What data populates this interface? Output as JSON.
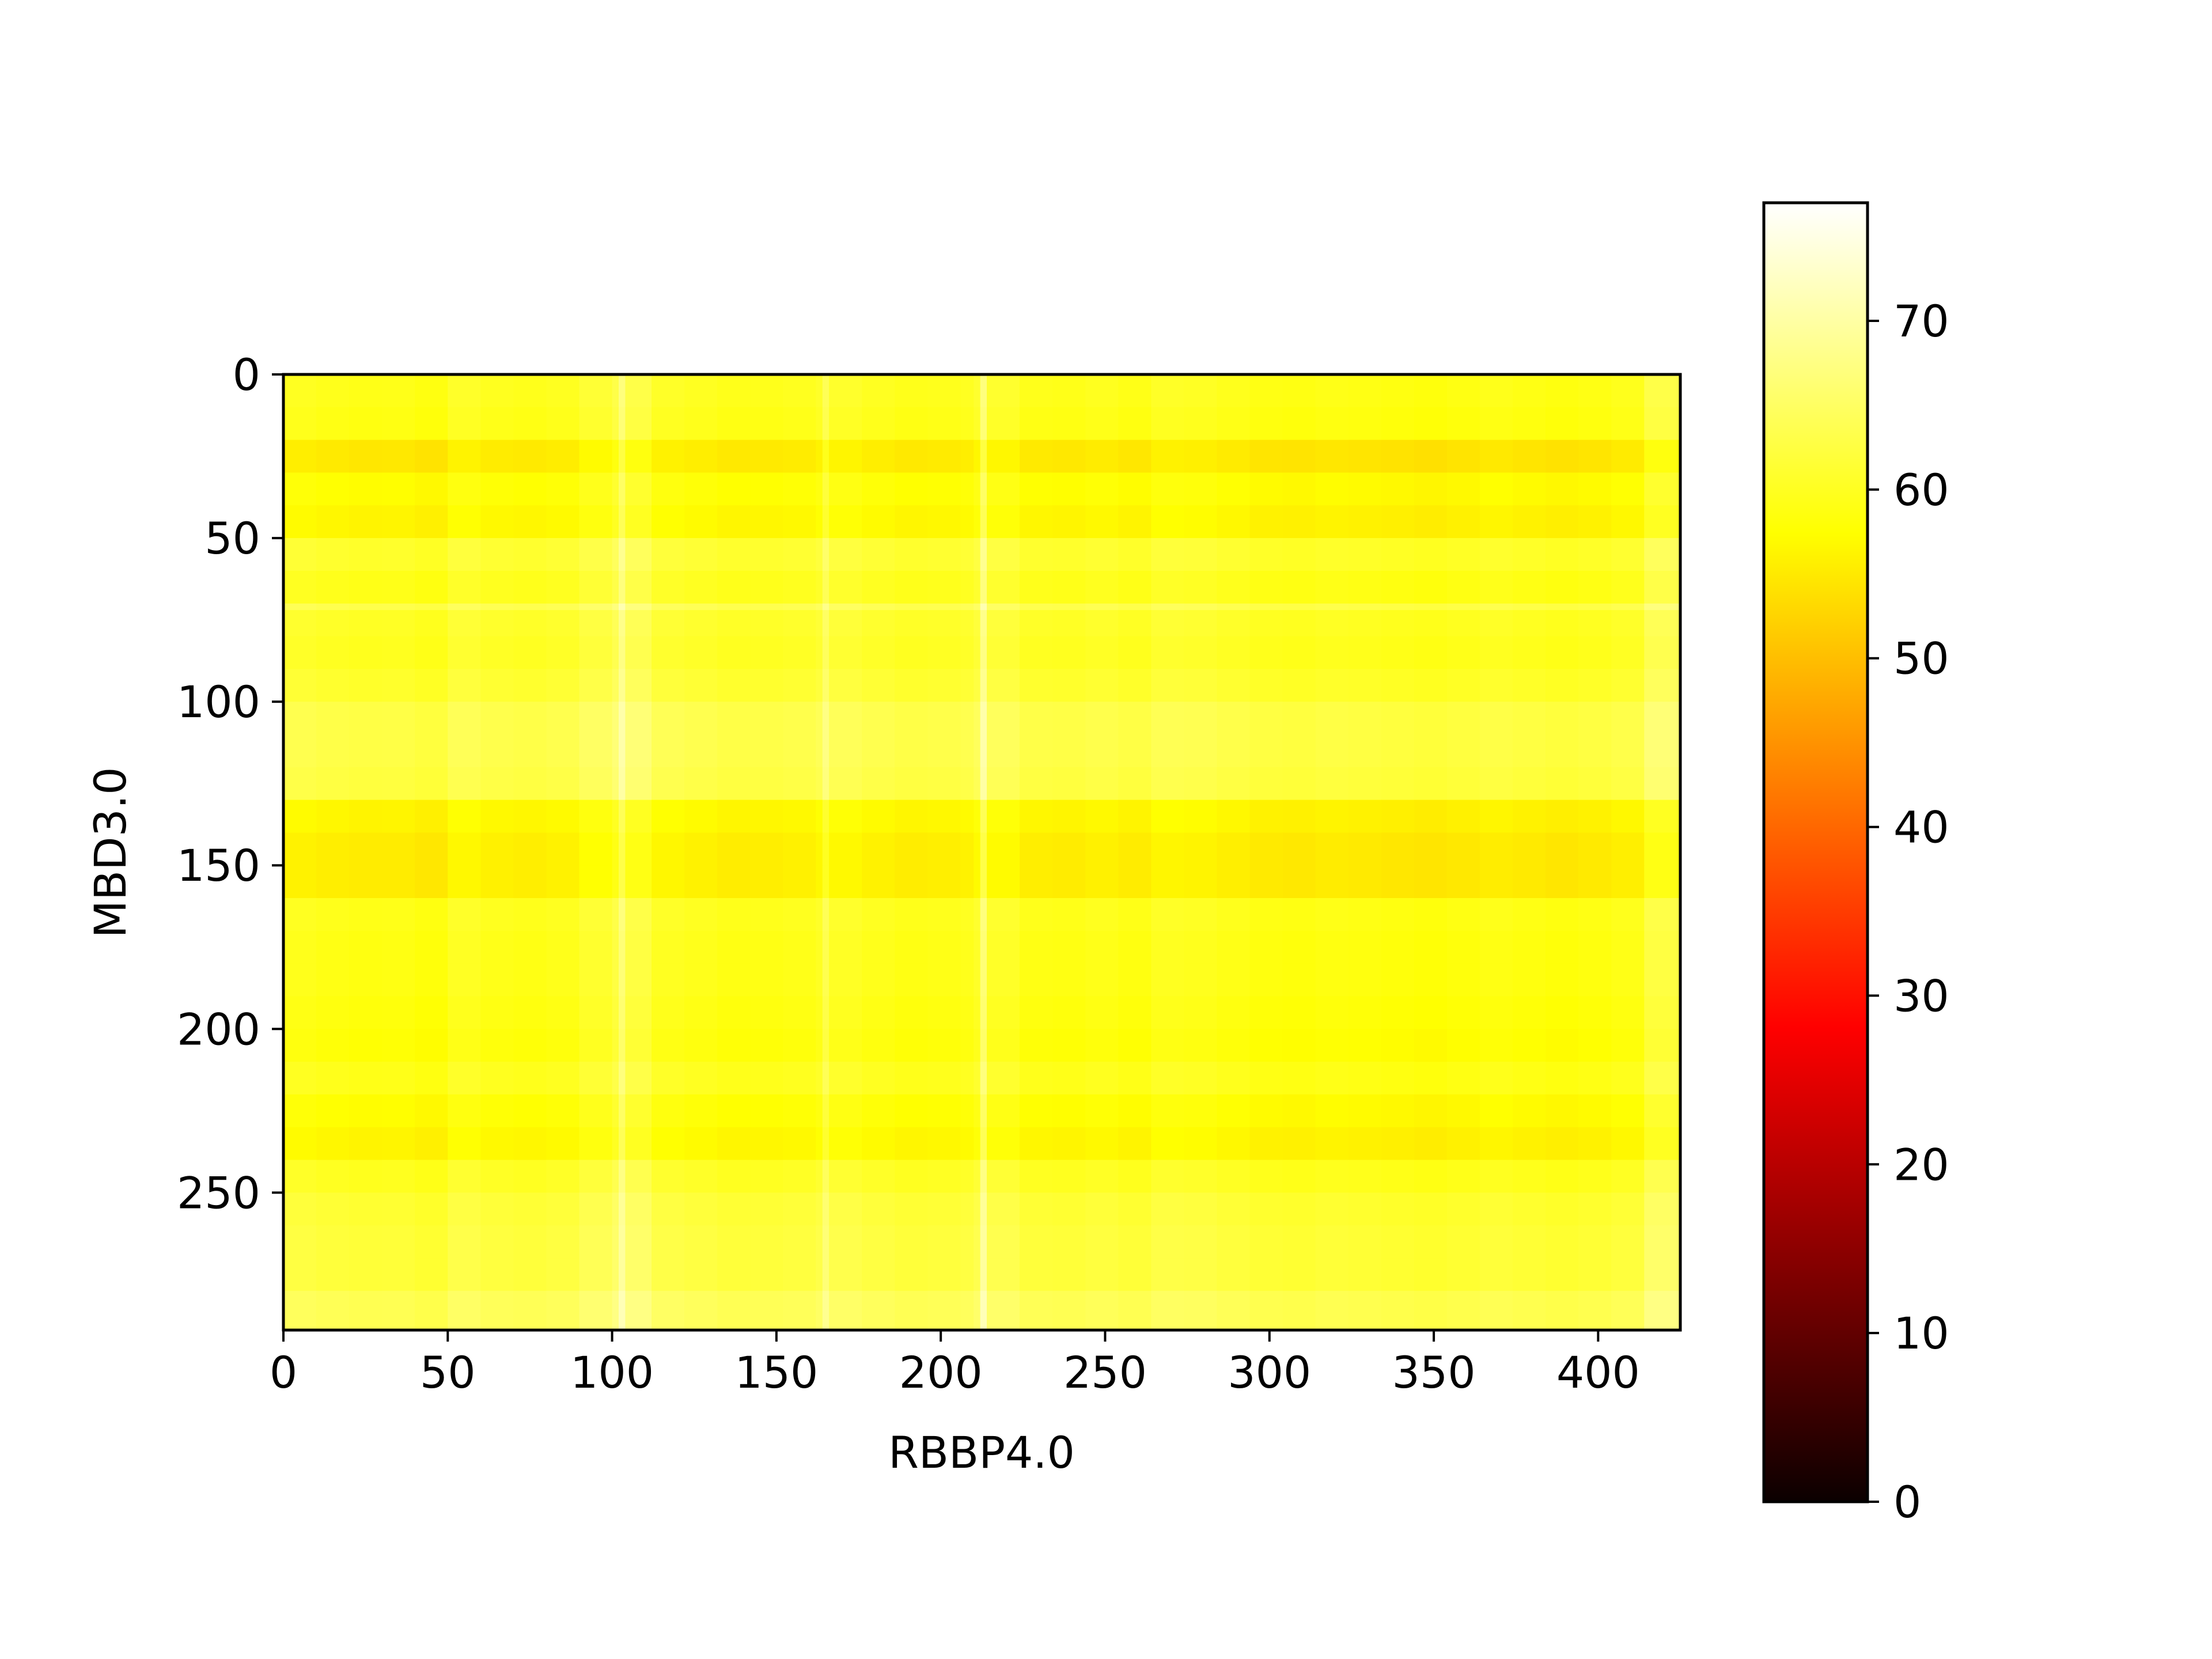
{
  "chart_data": {
    "type": "heatmap",
    "title": "",
    "xlabel": "RBBP4.0",
    "ylabel": "MBD3.0",
    "xlim": [
      0,
      425
    ],
    "ylim": [
      292,
      0
    ],
    "x_ticks": [
      "0",
      "50",
      "100",
      "150",
      "200",
      "250",
      "300",
      "350",
      "400"
    ],
    "y_ticks": [
      "0",
      "50",
      "100",
      "150",
      "200",
      "250"
    ],
    "colormap": "hot",
    "colorbar": {
      "range": [
        0,
        77
      ],
      "ticks": [
        "0",
        "10",
        "20",
        "30",
        "40",
        "50",
        "60",
        "70"
      ]
    },
    "column_edges": [
      0,
      10,
      20,
      30,
      40,
      50,
      60,
      70,
      80,
      90,
      100,
      102,
      104,
      112,
      122,
      132,
      142,
      152,
      162,
      164,
      166,
      176,
      186,
      196,
      206,
      210,
      212,
      214,
      224,
      234,
      244,
      254,
      264,
      274,
      284,
      294,
      304,
      314,
      324,
      334,
      344,
      354,
      364,
      374,
      384,
      394,
      404,
      414,
      425
    ],
    "column_offsets": [
      1.0,
      0.5,
      0.2,
      0.3,
      -0.3,
      1.6,
      0.8,
      0.5,
      0.9,
      2.5,
      4.0,
      8.0,
      4.0,
      1.5,
      1.0,
      0.4,
      0.5,
      0.8,
      1.6,
      5.0,
      1.8,
      1.0,
      0.4,
      0.6,
      1.0,
      2.0,
      8.0,
      2.0,
      0.5,
      0.3,
      0.8,
      0.2,
      1.4,
      1.2,
      0.6,
      0.0,
      -0.2,
      0.2,
      0.0,
      -0.3,
      -0.6,
      -0.2,
      0.4,
      0.0,
      -0.4,
      0.0,
      0.6,
      4.0
    ],
    "row_edges": [
      0,
      10,
      20,
      30,
      40,
      50,
      60,
      70,
      72,
      80,
      90,
      100,
      110,
      120,
      130,
      140,
      150,
      160,
      170,
      180,
      190,
      200,
      210,
      220,
      230,
      240,
      250,
      260,
      270,
      280,
      292
    ],
    "row_values": [
      59.0,
      58.5,
      54.5,
      57.0,
      56.0,
      60.5,
      59.0,
      63.0,
      60.0,
      59.5,
      60.5,
      62.5,
      62.5,
      62.0,
      56.0,
      55.0,
      55.0,
      59.0,
      58.5,
      58.5,
      58.0,
      57.5,
      59.0,
      57.0,
      56.0,
      59.5,
      61.0,
      61.5,
      61.5,
      63.5
    ],
    "values_note_omitted": true
  }
}
